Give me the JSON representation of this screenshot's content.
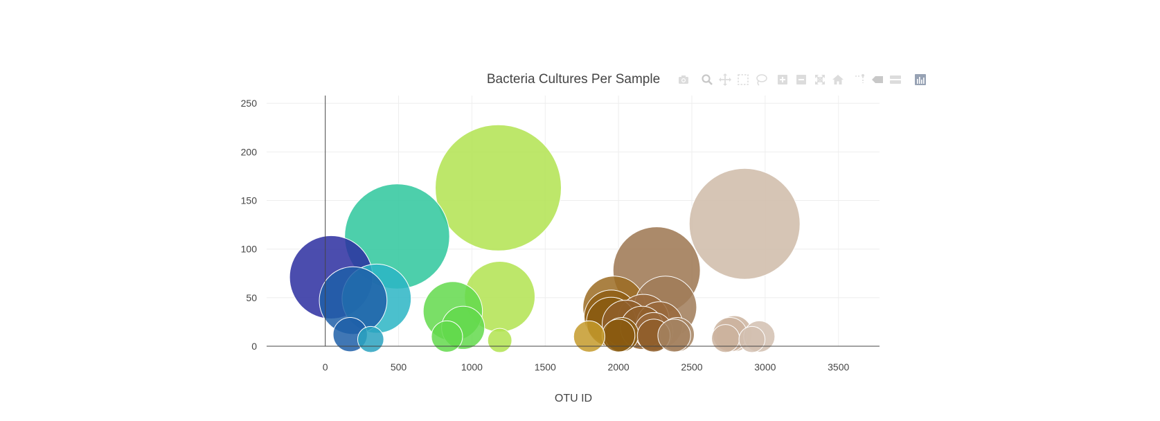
{
  "chart_data": {
    "type": "scatter",
    "title": "Bacteria Cultures Per Sample",
    "xlabel": "OTU ID",
    "ylabel": "",
    "xlim": [
      -400,
      3780
    ],
    "ylim": [
      0,
      258
    ],
    "xticks": [
      0,
      500,
      1000,
      1500,
      2000,
      2500,
      3000,
      3500
    ],
    "yticks": [
      0,
      50,
      100,
      150,
      200,
      250
    ],
    "grid": true,
    "legend": false,
    "marker_size": "proportional to sample value",
    "colorscale": "Earth",
    "points": [
      {
        "x": 40,
        "y": 71,
        "size": 71,
        "color": "#2c2ea0"
      },
      {
        "x": 190,
        "y": 47,
        "size": 47,
        "color": "#1e5fa8"
      },
      {
        "x": 350,
        "y": 49,
        "size": 49,
        "color": "#2bb5c4"
      },
      {
        "x": 170,
        "y": 12,
        "size": 12,
        "color": "#1e5fa8"
      },
      {
        "x": 310,
        "y": 7,
        "size": 7,
        "color": "#2aa2c0"
      },
      {
        "x": 490,
        "y": 113,
        "size": 113,
        "color": "#2ec79c"
      },
      {
        "x": 870,
        "y": 36,
        "size": 36,
        "color": "#63d94c"
      },
      {
        "x": 940,
        "y": 19,
        "size": 19,
        "color": "#63d94c"
      },
      {
        "x": 830,
        "y": 10,
        "size": 10,
        "color": "#63d94c"
      },
      {
        "x": 1180,
        "y": 163,
        "size": 163,
        "color": "#b2e350"
      },
      {
        "x": 1190,
        "y": 51,
        "size": 51,
        "color": "#b2e350"
      },
      {
        "x": 1190,
        "y": 6,
        "size": 6,
        "color": "#b2e350"
      },
      {
        "x": 1800,
        "y": 10,
        "size": 10,
        "color": "#c49a2c"
      },
      {
        "x": 1970,
        "y": 40,
        "size": 40,
        "color": "#9b6b22"
      },
      {
        "x": 1950,
        "y": 30,
        "size": 30,
        "color": "#8f5e14"
      },
      {
        "x": 1950,
        "y": 25,
        "size": 25,
        "color": "#8a5a10"
      },
      {
        "x": 2050,
        "y": 23,
        "size": 23,
        "color": "#8f5e2a"
      },
      {
        "x": 2020,
        "y": 12,
        "size": 12,
        "color": "#8a5a10"
      },
      {
        "x": 2000,
        "y": 11,
        "size": 11,
        "color": "#8a5a10"
      },
      {
        "x": 2170,
        "y": 27,
        "size": 27,
        "color": "#99683c"
      },
      {
        "x": 2160,
        "y": 19,
        "size": 19,
        "color": "#8f5e2a"
      },
      {
        "x": 2260,
        "y": 78,
        "size": 78,
        "color": "#9c7650"
      },
      {
        "x": 2320,
        "y": 40,
        "size": 40,
        "color": "#a07b58"
      },
      {
        "x": 2280,
        "y": 22,
        "size": 22,
        "color": "#99683c"
      },
      {
        "x": 2240,
        "y": 15,
        "size": 15,
        "color": "#99683c"
      },
      {
        "x": 2240,
        "y": 11,
        "size": 11,
        "color": "#8f5e2a"
      },
      {
        "x": 2400,
        "y": 12,
        "size": 12,
        "color": "#a58260"
      },
      {
        "x": 2380,
        "y": 11,
        "size": 11,
        "color": "#a58260"
      },
      {
        "x": 2860,
        "y": 126,
        "size": 126,
        "color": "#cfbba8"
      },
      {
        "x": 2790,
        "y": 13,
        "size": 13,
        "color": "#cbb39e"
      },
      {
        "x": 2760,
        "y": 12,
        "size": 12,
        "color": "#cbb39e"
      },
      {
        "x": 2960,
        "y": 10,
        "size": 10,
        "color": "#d2c0b0"
      },
      {
        "x": 2730,
        "y": 8,
        "size": 8,
        "color": "#cbb39e"
      },
      {
        "x": 2910,
        "y": 7,
        "size": 7,
        "color": "#d2c0b0"
      }
    ]
  },
  "modebar": {
    "buttons": [
      {
        "name": "camera-icon",
        "icon": "camera"
      },
      {
        "name": "zoom-icon",
        "icon": "zoom"
      },
      {
        "name": "pan-icon",
        "icon": "pan"
      },
      {
        "name": "box-select-icon",
        "icon": "box"
      },
      {
        "name": "lasso-select-icon",
        "icon": "lasso"
      },
      {
        "name": "zoom-in-icon",
        "icon": "zoomin"
      },
      {
        "name": "zoom-out-icon",
        "icon": "zoomout"
      },
      {
        "name": "autoscale-icon",
        "icon": "autoscale"
      },
      {
        "name": "reset-axes-icon",
        "icon": "home"
      },
      {
        "name": "spike-lines-icon",
        "icon": "spike"
      },
      {
        "name": "hover-closest-icon",
        "icon": "hover"
      },
      {
        "name": "hover-compare-icon",
        "icon": "compare"
      },
      {
        "name": "plotly-logo-icon",
        "icon": "logo"
      }
    ],
    "icon_color": "#dcdcdc",
    "active_color": "#c8c8c8",
    "logo_color": "#97a2b4"
  }
}
